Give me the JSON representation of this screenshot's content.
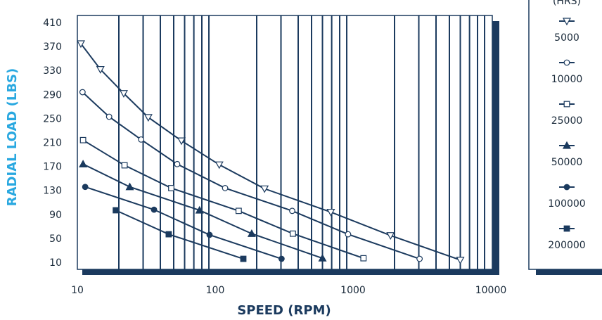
{
  "chart_data": {
    "type": "line",
    "x_label": "SPEED (RPM)",
    "y_label": "RADIAL LOAD (LBS)",
    "log_x": true,
    "xlim": [
      10,
      10000
    ],
    "xticks": [
      10,
      100,
      1000,
      10000
    ],
    "x_grid": [
      20,
      30,
      40,
      50,
      60,
      70,
      80,
      90,
      200,
      300,
      400,
      500,
      600,
      700,
      800,
      900,
      2000,
      3000,
      4000,
      5000,
      6000,
      7000,
      8000,
      9000
    ],
    "ylim": [
      10,
      410
    ],
    "yticks": [
      10,
      50,
      90,
      130,
      170,
      210,
      250,
      290,
      330,
      370,
      410
    ],
    "legend_title": "(HRS)",
    "color": "#1b3a5e",
    "series": [
      {
        "name": "5000",
        "marker": "triangle-down",
        "filled": false,
        "x": [
          10.6,
          14.7,
          21.7,
          32.7,
          56.9,
          107,
          228,
          690,
          1870,
          6000
        ],
        "values": [
          376,
          333,
          293,
          253,
          214,
          174,
          134,
          95,
          56,
          15
        ]
      },
      {
        "name": "10000",
        "marker": "circle",
        "filled": false,
        "x": [
          10.9,
          17,
          29,
          53,
          118,
          362,
          920,
          3040
        ],
        "values": [
          295,
          254,
          216,
          175,
          135,
          97,
          58,
          17
        ]
      },
      {
        "name": "25000",
        "marker": "square",
        "filled": false,
        "x": [
          11,
          22,
          48,
          148,
          366,
          1190
        ],
        "values": [
          215,
          173,
          135,
          97,
          59,
          18
        ]
      },
      {
        "name": "50000",
        "marker": "triangle-up",
        "filled": true,
        "x": [
          11,
          24,
          77,
          184,
          600
        ],
        "values": [
          175,
          137,
          98,
          59,
          18
        ]
      },
      {
        "name": "100000",
        "marker": "circle",
        "filled": true,
        "x": [
          11.4,
          36,
          91,
          303
        ],
        "values": [
          137,
          99,
          57,
          17
        ]
      },
      {
        "name": "200000",
        "marker": "square",
        "filled": true,
        "x": [
          19,
          46,
          160
        ],
        "values": [
          98,
          58,
          17
        ]
      }
    ]
  }
}
